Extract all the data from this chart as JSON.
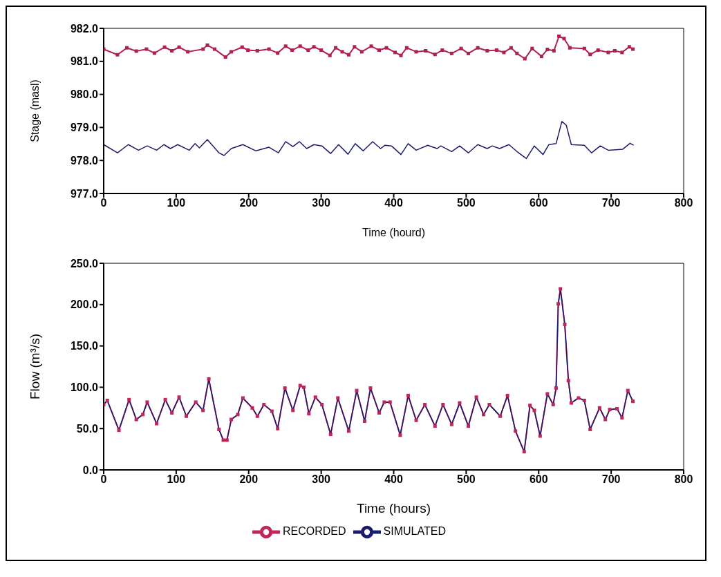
{
  "chart_data": [
    {
      "type": "line",
      "ylabel": "Stage (masl)",
      "xlabel": "Time (hourd)",
      "xlim": [
        0,
        800
      ],
      "xticks": [
        0,
        100,
        200,
        300,
        400,
        500,
        600,
        700,
        800
      ],
      "ylim": [
        977,
        982
      ],
      "yticks": [
        {
          "value": 977,
          "label": "977.0"
        },
        {
          "value": 978,
          "label": "978.0"
        },
        {
          "value": 979,
          "label": "979.0"
        },
        {
          "value": 980,
          "label": "980.0"
        },
        {
          "value": 981,
          "label": "981.0"
        },
        {
          "value": 982,
          "label": "982.0"
        }
      ],
      "grid": false,
      "legend": false,
      "line_style": "solid",
      "series": [
        {
          "color": "#b0204f",
          "marker": "square",
          "x": [
            0,
            19,
            32,
            45,
            59,
            70,
            84,
            94,
            104,
            116,
            137,
            143,
            153,
            168,
            176,
            191,
            199,
            212,
            228,
            240,
            251,
            260,
            271,
            282,
            290,
            300,
            312,
            320,
            329,
            338,
            346,
            356,
            369,
            380,
            390,
            402,
            410,
            418,
            431,
            444,
            457,
            467,
            480,
            493,
            503,
            516,
            529,
            542,
            552,
            562,
            570,
            581,
            591,
            604,
            612,
            621,
            628,
            635,
            643,
            663,
            671,
            682,
            696,
            705,
            715,
            725,
            730
          ],
          "values": [
            981.37,
            981.2,
            981.41,
            981.31,
            981.37,
            981.25,
            981.43,
            981.32,
            981.43,
            981.29,
            981.37,
            981.49,
            981.37,
            981.13,
            981.29,
            981.43,
            981.34,
            981.32,
            981.37,
            981.25,
            981.46,
            981.34,
            981.46,
            981.34,
            981.44,
            981.34,
            981.18,
            981.41,
            981.29,
            981.2,
            981.44,
            981.29,
            981.46,
            981.34,
            981.41,
            981.27,
            981.18,
            981.41,
            981.29,
            981.32,
            981.21,
            981.34,
            981.24,
            981.39,
            981.24,
            981.41,
            981.32,
            981.34,
            981.27,
            981.41,
            981.24,
            981.08,
            981.39,
            981.15,
            981.36,
            981.32,
            981.76,
            981.69,
            981.41,
            981.39,
            981.21,
            981.34,
            981.27,
            981.32,
            981.27,
            981.44,
            981.37
          ]
        },
        {
          "color": "#1c1c6e",
          "marker": "none",
          "x": [
            0,
            19,
            34,
            48,
            60,
            73,
            83,
            92,
            102,
            118,
            126,
            132,
            143,
            159,
            166,
            176,
            192,
            210,
            228,
            241,
            251,
            261,
            270,
            280,
            290,
            301,
            313,
            324,
            337,
            347,
            358,
            371,
            382,
            388,
            397,
            410,
            420,
            431,
            447,
            460,
            465,
            480,
            491,
            503,
            516,
            529,
            536,
            546,
            559,
            570,
            583,
            594,
            606,
            614,
            624,
            632,
            638,
            645,
            663,
            673,
            685,
            696,
            716,
            726,
            731
          ],
          "values": [
            978.48,
            978.23,
            978.48,
            978.31,
            978.44,
            978.31,
            978.48,
            978.36,
            978.48,
            978.31,
            978.51,
            978.38,
            978.63,
            978.23,
            978.15,
            978.36,
            978.48,
            978.29,
            978.4,
            978.23,
            978.57,
            978.42,
            978.57,
            978.36,
            978.48,
            978.44,
            978.21,
            978.48,
            978.19,
            978.51,
            978.29,
            978.57,
            978.36,
            978.46,
            978.44,
            978.18,
            978.51,
            978.31,
            978.46,
            978.36,
            978.44,
            978.27,
            978.44,
            978.23,
            978.48,
            978.36,
            978.44,
            978.36,
            978.48,
            978.27,
            978.06,
            978.44,
            978.18,
            978.48,
            978.51,
            979.18,
            979.07,
            978.48,
            978.46,
            978.23,
            978.44,
            978.31,
            978.34,
            978.52,
            978.46
          ]
        }
      ]
    },
    {
      "type": "line",
      "ylabel": "Flow (m³/s)",
      "xlabel": "Time (hours)",
      "xlim": [
        0,
        800
      ],
      "xticks": [
        0,
        100,
        200,
        300,
        400,
        500,
        600,
        700,
        800
      ],
      "ylim": [
        0,
        250
      ],
      "yticks": [
        {
          "value": 0,
          "label": "0.0"
        },
        {
          "value": 50,
          "label": "50.0"
        },
        {
          "value": 100,
          "label": "100.0"
        },
        {
          "value": 150,
          "label": "150.0"
        },
        {
          "value": 200,
          "label": "200.0"
        },
        {
          "value": 250,
          "label": "250.0"
        }
      ],
      "grid": false,
      "legend": "bottom",
      "line_style": "solid",
      "series": [
        {
          "name": "RECORDED",
          "color": "#c0265a",
          "marker": "square",
          "x": [
            0,
            5,
            21,
            35,
            45,
            54,
            60,
            73,
            85,
            94,
            104,
            114,
            127,
            137,
            145,
            159,
            165,
            170,
            176,
            185,
            192,
            205,
            212,
            221,
            232,
            240,
            250,
            261,
            271,
            276,
            283,
            292,
            301,
            313,
            323,
            338,
            349,
            360,
            368,
            380,
            387,
            395,
            409,
            420,
            431,
            443,
            457,
            468,
            480,
            491,
            503,
            514,
            524,
            532,
            547,
            557,
            568,
            580,
            588,
            594,
            602,
            612,
            620,
            624,
            627,
            630,
            636,
            641,
            645,
            655,
            663,
            671,
            684,
            692,
            698,
            708,
            715,
            723,
            730
          ],
          "values": [
            79,
            84,
            48,
            85,
            61,
            67,
            82,
            56,
            85,
            69,
            88,
            65,
            82,
            72,
            110,
            49,
            36,
            36,
            61,
            67,
            87,
            75,
            65,
            79,
            71,
            50,
            99,
            72,
            102,
            100,
            68,
            88,
            79,
            43,
            87,
            47,
            96,
            59,
            99,
            69,
            82,
            82,
            42,
            90,
            60,
            79,
            53,
            79,
            55,
            81,
            53,
            88,
            67,
            79,
            65,
            90,
            47,
            22,
            78,
            72,
            41,
            92,
            79,
            99,
            201,
            219,
            176,
            108,
            81,
            87,
            84,
            49,
            75,
            61,
            73,
            74,
            63,
            96,
            83
          ]
        },
        {
          "name": "SIMULATED",
          "color": "#1c1c6e",
          "marker": "none",
          "x": [
            0,
            5,
            21,
            35,
            45,
            54,
            60,
            73,
            85,
            94,
            104,
            114,
            127,
            137,
            145,
            159,
            165,
            170,
            176,
            185,
            192,
            205,
            212,
            221,
            232,
            240,
            250,
            261,
            271,
            276,
            283,
            292,
            301,
            313,
            323,
            338,
            349,
            360,
            368,
            380,
            387,
            395,
            409,
            420,
            431,
            443,
            457,
            468,
            480,
            491,
            503,
            514,
            524,
            532,
            547,
            557,
            568,
            580,
            588,
            594,
            602,
            612,
            620,
            624,
            627,
            630,
            636,
            641,
            645,
            655,
            663,
            671,
            684,
            692,
            698,
            708,
            715,
            723,
            730
          ],
          "values": [
            79,
            84,
            48,
            85,
            61,
            67,
            82,
            56,
            85,
            69,
            88,
            65,
            82,
            72,
            110,
            49,
            36,
            36,
            61,
            67,
            87,
            75,
            65,
            79,
            71,
            50,
            99,
            72,
            102,
            100,
            68,
            88,
            79,
            43,
            87,
            47,
            96,
            59,
            99,
            69,
            82,
            82,
            42,
            90,
            60,
            79,
            53,
            79,
            55,
            81,
            53,
            88,
            67,
            79,
            65,
            90,
            47,
            22,
            78,
            72,
            41,
            92,
            79,
            99,
            201,
            219,
            176,
            108,
            81,
            87,
            84,
            49,
            75,
            61,
            73,
            74,
            63,
            96,
            83
          ]
        }
      ]
    }
  ]
}
